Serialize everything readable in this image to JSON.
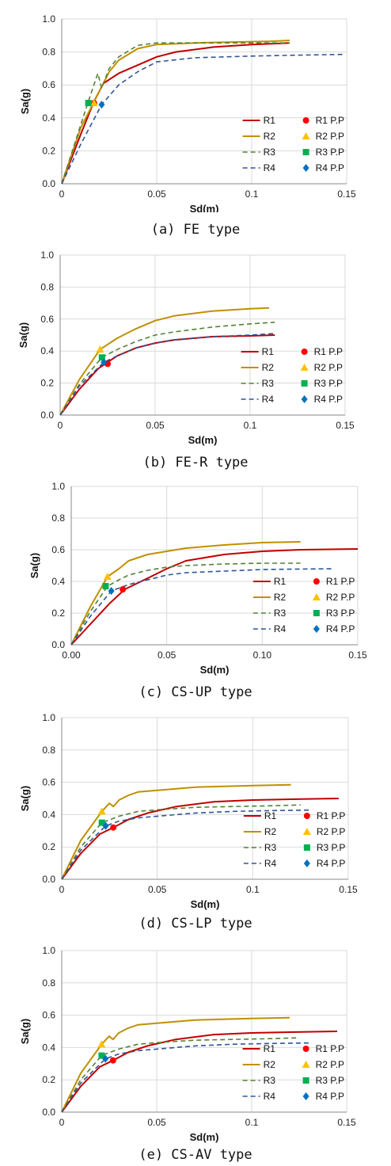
{
  "chart_data": [
    {
      "type": "line",
      "caption": "(a) FE type",
      "xlabel": "Sd(m)",
      "ylabel": "Sa(g)",
      "xlim": [
        0,
        0.15
      ],
      "ylim": [
        0,
        1.0
      ],
      "xticks": [
        "0",
        "0.05",
        "0.1",
        "0.15"
      ],
      "yticks": [
        "0.0",
        "0.2",
        "0.4",
        "0.6",
        "0.8",
        "1.0"
      ],
      "grid": true,
      "legend": "bottom-right",
      "series": [
        {
          "name": "R1",
          "color": "#c00000",
          "style": "solid",
          "x": [
            0,
            0.01,
            0.017,
            0.022,
            0.03,
            0.04,
            0.05,
            0.06,
            0.08,
            0.1,
            0.12
          ],
          "y": [
            0,
            0.3,
            0.5,
            0.61,
            0.67,
            0.72,
            0.77,
            0.8,
            0.83,
            0.845,
            0.855
          ]
        },
        {
          "name": "R2",
          "color": "#bf9000",
          "style": "solid",
          "x": [
            0,
            0.01,
            0.018,
            0.025,
            0.03,
            0.04,
            0.05,
            0.07,
            0.09,
            0.11,
            0.12
          ],
          "y": [
            0,
            0.34,
            0.52,
            0.68,
            0.75,
            0.82,
            0.845,
            0.855,
            0.86,
            0.865,
            0.87
          ]
        },
        {
          "name": "R3",
          "color": "#548235",
          "style": "dashed",
          "x": [
            0,
            0.014,
            0.019,
            0.021,
            0.025,
            0.03,
            0.04,
            0.05,
            0.08,
            0.1,
            0.12
          ],
          "y": [
            0,
            0.5,
            0.67,
            0.58,
            0.7,
            0.77,
            0.84,
            0.855,
            0.855,
            0.855,
            0.855
          ]
        },
        {
          "name": "R4",
          "color": "#2f5597",
          "style": "dashed",
          "x": [
            0,
            0.01,
            0.021,
            0.03,
            0.04,
            0.05,
            0.07,
            0.1,
            0.12,
            0.148
          ],
          "y": [
            0,
            0.24,
            0.48,
            0.6,
            0.68,
            0.74,
            0.765,
            0.775,
            0.78,
            0.785
          ]
        }
      ],
      "performance_points": [
        {
          "name": "R1 P.P",
          "color": "#ff0000",
          "marker": "circle",
          "x": 0.017,
          "y": 0.49
        },
        {
          "name": "R2 P.P",
          "color": "#ffc000",
          "marker": "triangle",
          "x": 0.017,
          "y": 0.49
        },
        {
          "name": "R3 P.P",
          "color": "#00b050",
          "marker": "square",
          "x": 0.014,
          "y": 0.49
        },
        {
          "name": "R4 P.P",
          "color": "#0070c0",
          "marker": "diamond",
          "x": 0.021,
          "y": 0.48
        }
      ]
    },
    {
      "type": "line",
      "caption": "(b) FE-R type",
      "xlabel": "Sd(m)",
      "ylabel": "Sa(g)",
      "xlim": [
        0,
        0.15
      ],
      "ylim": [
        0,
        1.0
      ],
      "xticks": [
        "0",
        "0.05",
        "0.1",
        "0.15"
      ],
      "yticks": [
        "0.0",
        "0.2",
        "0.4",
        "0.6",
        "0.8",
        "1.0"
      ],
      "grid": true,
      "legend": "bottom-right",
      "series": [
        {
          "name": "R1",
          "color": "#c00000",
          "style": "solid",
          "x": [
            0,
            0.01,
            0.02,
            0.025,
            0.03,
            0.04,
            0.05,
            0.06,
            0.08,
            0.1,
            0.113
          ],
          "y": [
            0,
            0.16,
            0.29,
            0.33,
            0.37,
            0.42,
            0.45,
            0.47,
            0.49,
            0.495,
            0.5
          ]
        },
        {
          "name": "R2",
          "color": "#bf9000",
          "style": "solid",
          "x": [
            0,
            0.01,
            0.021,
            0.03,
            0.04,
            0.05,
            0.06,
            0.08,
            0.1,
            0.11
          ],
          "y": [
            0,
            0.22,
            0.41,
            0.48,
            0.54,
            0.59,
            0.62,
            0.65,
            0.665,
            0.67
          ]
        },
        {
          "name": "R3",
          "color": "#548235",
          "style": "dashed",
          "x": [
            0,
            0.01,
            0.022,
            0.03,
            0.04,
            0.05,
            0.06,
            0.08,
            0.1,
            0.113
          ],
          "y": [
            0,
            0.19,
            0.36,
            0.41,
            0.46,
            0.5,
            0.52,
            0.55,
            0.57,
            0.58
          ]
        },
        {
          "name": "R4",
          "color": "#2f5597",
          "style": "dashed",
          "x": [
            0,
            0.01,
            0.023,
            0.03,
            0.04,
            0.05,
            0.06,
            0.08,
            0.1,
            0.113
          ],
          "y": [
            0,
            0.18,
            0.33,
            0.37,
            0.42,
            0.45,
            0.47,
            0.49,
            0.5,
            0.51
          ]
        }
      ],
      "performance_points": [
        {
          "name": "R1 P.P",
          "color": "#ff0000",
          "marker": "circle",
          "x": 0.025,
          "y": 0.32
        },
        {
          "name": "R2 P.P",
          "color": "#ffc000",
          "marker": "triangle",
          "x": 0.021,
          "y": 0.41
        },
        {
          "name": "R3 P.P",
          "color": "#00b050",
          "marker": "square",
          "x": 0.022,
          "y": 0.36
        },
        {
          "name": "R4 P.P",
          "color": "#0070c0",
          "marker": "diamond",
          "x": 0.023,
          "y": 0.33
        }
      ]
    },
    {
      "type": "line",
      "caption": "(c) CS-UP type",
      "xlabel": "Sd(m)",
      "ylabel": "Sa(g)",
      "xlim": [
        0,
        0.15
      ],
      "ylim": [
        0,
        1.0
      ],
      "xticks": [
        "0.00",
        "0.05",
        "0.10",
        "0.15"
      ],
      "yticks": [
        "0.0",
        "0.2",
        "0.4",
        "0.6",
        "0.8",
        "1.0"
      ],
      "grid": true,
      "legend": "bottom-right",
      "series": [
        {
          "name": "R1",
          "color": "#c00000",
          "style": "solid",
          "x": [
            0,
            0.01,
            0.02,
            0.028,
            0.04,
            0.05,
            0.06,
            0.08,
            0.1,
            0.12,
            0.15
          ],
          "y": [
            0,
            0.13,
            0.26,
            0.35,
            0.42,
            0.48,
            0.53,
            0.57,
            0.59,
            0.6,
            0.605
          ]
        },
        {
          "name": "R2",
          "color": "#bf9000",
          "style": "solid",
          "x": [
            0,
            0.01,
            0.019,
            0.025,
            0.03,
            0.04,
            0.05,
            0.06,
            0.08,
            0.1,
            0.12
          ],
          "y": [
            0,
            0.24,
            0.43,
            0.48,
            0.53,
            0.57,
            0.59,
            0.61,
            0.63,
            0.645,
            0.65
          ]
        },
        {
          "name": "R3",
          "color": "#548235",
          "style": "dashed",
          "x": [
            0,
            0.01,
            0.019,
            0.025,
            0.03,
            0.04,
            0.05,
            0.06,
            0.08,
            0.1,
            0.12
          ],
          "y": [
            0,
            0.21,
            0.37,
            0.41,
            0.44,
            0.47,
            0.49,
            0.5,
            0.51,
            0.515,
            0.515
          ]
        },
        {
          "name": "R4",
          "color": "#2f5597",
          "style": "dashed",
          "x": [
            0,
            0.01,
            0.021,
            0.03,
            0.04,
            0.05,
            0.06,
            0.08,
            0.1,
            0.12,
            0.137
          ],
          "y": [
            0,
            0.18,
            0.34,
            0.38,
            0.41,
            0.44,
            0.455,
            0.465,
            0.475,
            0.478,
            0.48
          ]
        }
      ],
      "performance_points": [
        {
          "name": "R1 P.P",
          "color": "#ff0000",
          "marker": "circle",
          "x": 0.027,
          "y": 0.35
        },
        {
          "name": "R2 P.P",
          "color": "#ffc000",
          "marker": "triangle",
          "x": 0.019,
          "y": 0.43
        },
        {
          "name": "R3 P.P",
          "color": "#00b050",
          "marker": "square",
          "x": 0.018,
          "y": 0.37
        },
        {
          "name": "R4 P.P",
          "color": "#0070c0",
          "marker": "diamond",
          "x": 0.021,
          "y": 0.34
        }
      ]
    },
    {
      "type": "line",
      "caption": "(d) CS-LP type",
      "xlabel": "Sd(m)",
      "ylabel": "Sa(g)",
      "xlim": [
        0,
        0.15
      ],
      "ylim": [
        0,
        1.0
      ],
      "xticks": [
        "0",
        "0.05",
        "0.1",
        "0.15"
      ],
      "yticks": [
        "0.0",
        "0.2",
        "0.4",
        "0.6",
        "0.8",
        "1.0"
      ],
      "grid": true,
      "legend": "bottom-right",
      "series": [
        {
          "name": "R1",
          "color": "#c00000",
          "style": "solid",
          "x": [
            0,
            0.01,
            0.02,
            0.027,
            0.035,
            0.045,
            0.06,
            0.08,
            0.1,
            0.12,
            0.145
          ],
          "y": [
            0,
            0.16,
            0.28,
            0.32,
            0.37,
            0.41,
            0.45,
            0.48,
            0.49,
            0.495,
            0.5
          ]
        },
        {
          "name": "R2",
          "color": "#bf9000",
          "style": "solid",
          "x": [
            0,
            0.01,
            0.021,
            0.025,
            0.027,
            0.03,
            0.035,
            0.04,
            0.05,
            0.07,
            0.1,
            0.12
          ],
          "y": [
            0,
            0.24,
            0.42,
            0.47,
            0.45,
            0.49,
            0.52,
            0.54,
            0.55,
            0.57,
            0.58,
            0.585
          ]
        },
        {
          "name": "R3",
          "color": "#548235",
          "style": "dashed",
          "x": [
            0,
            0.01,
            0.021,
            0.03,
            0.04,
            0.05,
            0.07,
            0.09,
            0.11,
            0.125
          ],
          "y": [
            0,
            0.2,
            0.35,
            0.39,
            0.42,
            0.43,
            0.445,
            0.45,
            0.455,
            0.46
          ]
        },
        {
          "name": "R4",
          "color": "#2f5597",
          "style": "dashed",
          "x": [
            0,
            0.01,
            0.023,
            0.03,
            0.04,
            0.05,
            0.07,
            0.09,
            0.11,
            0.13
          ],
          "y": [
            0,
            0.18,
            0.33,
            0.36,
            0.38,
            0.39,
            0.41,
            0.42,
            0.425,
            0.428
          ]
        }
      ],
      "performance_points": [
        {
          "name": "R1 P.P",
          "color": "#ff0000",
          "marker": "circle",
          "x": 0.027,
          "y": 0.32
        },
        {
          "name": "R2 P.P",
          "color": "#ffc000",
          "marker": "triangle",
          "x": 0.021,
          "y": 0.42
        },
        {
          "name": "R3 P.P",
          "color": "#00b050",
          "marker": "square",
          "x": 0.021,
          "y": 0.35
        },
        {
          "name": "R4 P.P",
          "color": "#0070c0",
          "marker": "diamond",
          "x": 0.023,
          "y": 0.33
        }
      ]
    },
    {
      "type": "line",
      "caption": "(e) CS-AV type",
      "xlabel": "Sd(m)",
      "ylabel": "Sa(g)",
      "xlim": [
        0,
        0.15
      ],
      "ylim": [
        0,
        1.0
      ],
      "xticks": [
        "0",
        "0.05",
        "0.1",
        "0.15"
      ],
      "yticks": [
        "0.0",
        "0.2",
        "0.4",
        "0.6",
        "0.8",
        "1.0"
      ],
      "grid": true,
      "legend": "bottom-right",
      "series": [
        {
          "name": "R1",
          "color": "#c00000",
          "style": "solid",
          "x": [
            0,
            0.01,
            0.02,
            0.027,
            0.035,
            0.045,
            0.06,
            0.08,
            0.1,
            0.12,
            0.145
          ],
          "y": [
            0,
            0.16,
            0.28,
            0.32,
            0.37,
            0.41,
            0.45,
            0.48,
            0.49,
            0.495,
            0.5
          ]
        },
        {
          "name": "R2",
          "color": "#bf9000",
          "style": "solid",
          "x": [
            0,
            0.01,
            0.021,
            0.025,
            0.027,
            0.03,
            0.035,
            0.04,
            0.05,
            0.07,
            0.1,
            0.12
          ],
          "y": [
            0,
            0.24,
            0.42,
            0.47,
            0.45,
            0.49,
            0.52,
            0.54,
            0.55,
            0.57,
            0.58,
            0.585
          ]
        },
        {
          "name": "R3",
          "color": "#548235",
          "style": "dashed",
          "x": [
            0,
            0.01,
            0.021,
            0.03,
            0.04,
            0.05,
            0.07,
            0.09,
            0.11,
            0.125
          ],
          "y": [
            0,
            0.2,
            0.35,
            0.39,
            0.42,
            0.43,
            0.445,
            0.45,
            0.455,
            0.46
          ]
        },
        {
          "name": "R4",
          "color": "#2f5597",
          "style": "dashed",
          "x": [
            0,
            0.01,
            0.023,
            0.03,
            0.04,
            0.05,
            0.07,
            0.09,
            0.11,
            0.13
          ],
          "y": [
            0,
            0.18,
            0.33,
            0.36,
            0.38,
            0.39,
            0.41,
            0.42,
            0.425,
            0.428
          ]
        }
      ],
      "performance_points": [
        {
          "name": "R1 P.P",
          "color": "#ff0000",
          "marker": "circle",
          "x": 0.027,
          "y": 0.32
        },
        {
          "name": "R2 P.P",
          "color": "#ffc000",
          "marker": "triangle",
          "x": 0.021,
          "y": 0.42
        },
        {
          "name": "R3 P.P",
          "color": "#00b050",
          "marker": "square",
          "x": 0.021,
          "y": 0.35
        },
        {
          "name": "R4 P.P",
          "color": "#0070c0",
          "marker": "diamond",
          "x": 0.023,
          "y": 0.33
        }
      ]
    }
  ]
}
